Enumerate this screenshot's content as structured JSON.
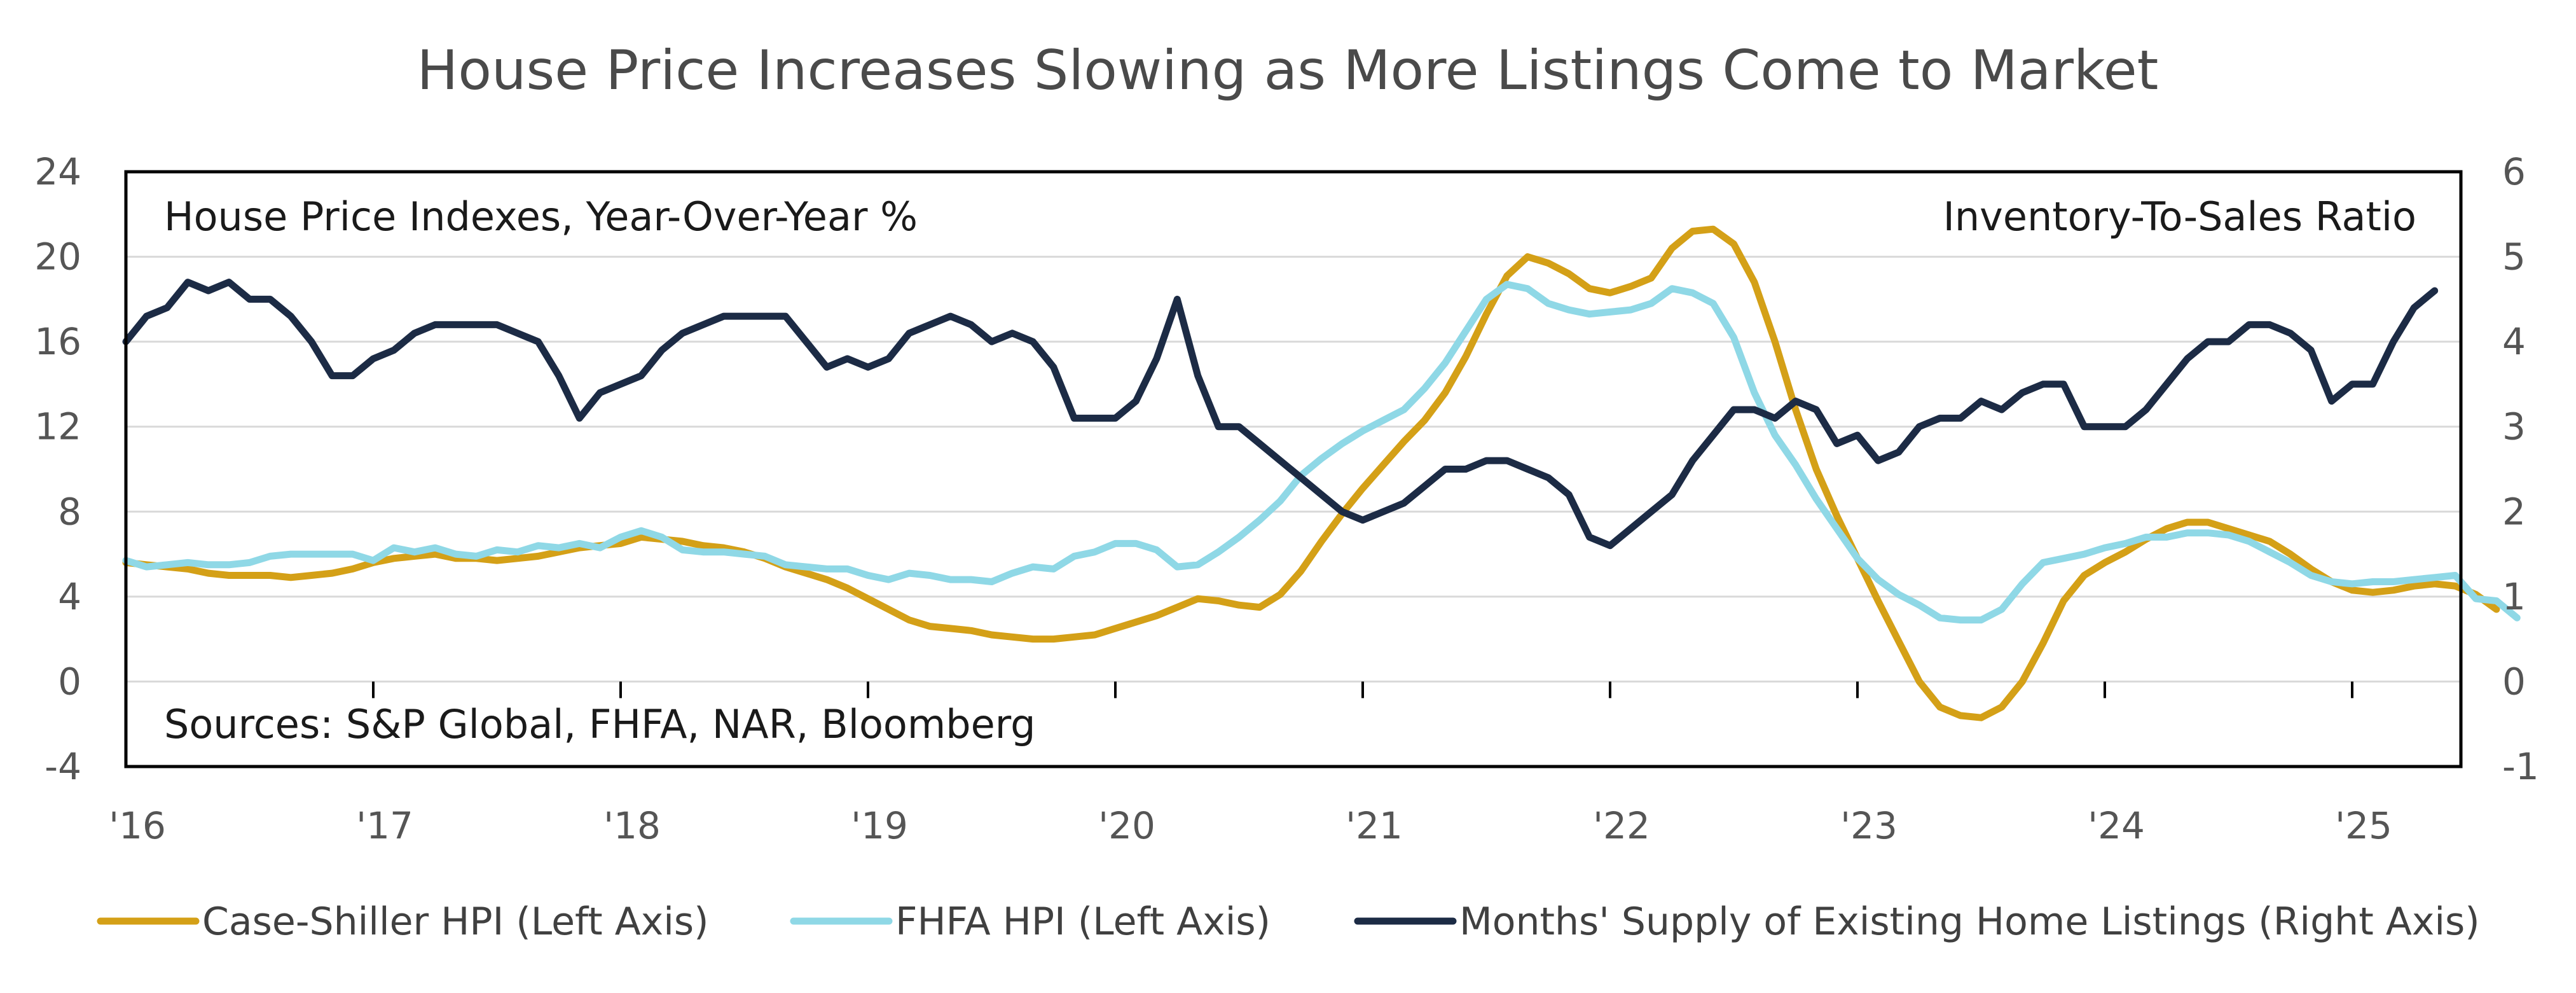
{
  "chart_data": {
    "type": "line",
    "title": "House Price Increases Slowing as More Listings Come to Market",
    "left_axis_label": "House Price Indexes, Year-Over-Year %",
    "right_axis_label": "Inventory-To-Sales Ratio",
    "source_note": "Sources: S&P Global, FHFA, NAR, Bloomberg",
    "x_start_year": 2016,
    "months_per_step": 1,
    "x_labels": [
      "'16",
      "'17",
      "'18",
      "'19",
      "'20",
      "'21",
      "'22",
      "'23",
      "'24",
      "'25"
    ],
    "ylim_left": [
      -4,
      24
    ],
    "yticks_left": [
      "24",
      "20",
      "16",
      "12",
      "8",
      "4",
      "0",
      "-4"
    ],
    "ylim_right": [
      -1,
      6
    ],
    "yticks_right": [
      "6",
      "5",
      "4",
      "3",
      "2",
      "1",
      "0",
      "-1"
    ],
    "legend_position": "bottom",
    "colors": {
      "case_shiller": "#D4A017",
      "fhfa": "#8FD8E6",
      "supply": "#1C2B45",
      "grid": "#D9D9D9",
      "frame": "#000000"
    },
    "series": [
      {
        "name": "Case-Shiller HPI (Left Axis)",
        "axis": "left",
        "color": "#D4A017",
        "values": [
          5.6,
          5.5,
          5.4,
          5.3,
          5.1,
          5.0,
          5.0,
          5.0,
          4.9,
          5.0,
          5.1,
          5.3,
          5.6,
          5.8,
          5.9,
          6.0,
          5.8,
          5.8,
          5.7,
          5.8,
          5.9,
          6.1,
          6.3,
          6.4,
          6.5,
          6.8,
          6.7,
          6.6,
          6.4,
          6.3,
          6.1,
          5.8,
          5.4,
          5.1,
          4.8,
          4.4,
          3.9,
          3.4,
          2.9,
          2.6,
          2.5,
          2.4,
          2.2,
          2.1,
          2.0,
          2.0,
          2.1,
          2.2,
          2.5,
          2.8,
          3.1,
          3.5,
          3.9,
          3.8,
          3.6,
          3.5,
          4.1,
          5.2,
          6.6,
          7.9,
          9.1,
          10.2,
          11.3,
          12.3,
          13.6,
          15.3,
          17.3,
          19.1,
          20.0,
          19.7,
          19.2,
          18.5,
          18.3,
          18.6,
          19.0,
          20.4,
          21.2,
          21.3,
          20.6,
          18.8,
          16.0,
          12.8,
          10.0,
          7.8,
          5.8,
          3.8,
          1.9,
          0.0,
          -1.2,
          -1.6,
          -1.7,
          -1.2,
          0.0,
          1.8,
          3.8,
          5.0,
          5.6,
          6.1,
          6.7,
          7.2,
          7.5,
          7.5,
          7.2,
          6.9,
          6.6,
          6.0,
          5.3,
          4.7,
          4.3,
          4.2,
          4.3,
          4.5,
          4.6,
          4.5,
          4.1,
          3.4
        ]
      },
      {
        "name": "FHFA HPI (Left Axis)",
        "axis": "left",
        "color": "#8FD8E6",
        "values": [
          5.7,
          5.4,
          5.5,
          5.6,
          5.5,
          5.5,
          5.6,
          5.9,
          6.0,
          6.0,
          6.0,
          6.0,
          5.7,
          6.3,
          6.1,
          6.3,
          6.0,
          5.9,
          6.2,
          6.1,
          6.4,
          6.3,
          6.5,
          6.3,
          6.8,
          7.1,
          6.8,
          6.2,
          6.1,
          6.1,
          6.0,
          5.9,
          5.5,
          5.4,
          5.3,
          5.3,
          5.0,
          4.8,
          5.1,
          5.0,
          4.8,
          4.8,
          4.7,
          5.1,
          5.4,
          5.3,
          5.9,
          6.1,
          6.5,
          6.5,
          6.2,
          5.4,
          5.5,
          6.1,
          6.8,
          7.6,
          8.5,
          9.7,
          10.5,
          11.2,
          11.8,
          12.3,
          12.8,
          13.8,
          15.0,
          16.5,
          18.0,
          18.7,
          18.5,
          17.8,
          17.5,
          17.3,
          17.4,
          17.5,
          17.8,
          18.5,
          18.3,
          17.8,
          16.2,
          13.6,
          11.6,
          10.2,
          8.6,
          7.2,
          5.8,
          4.8,
          4.1,
          3.6,
          3.0,
          2.9,
          2.9,
          3.4,
          4.6,
          5.6,
          5.8,
          6.0,
          6.3,
          6.5,
          6.8,
          6.8,
          7.0,
          7.0,
          6.9,
          6.6,
          6.1,
          5.6,
          5.0,
          4.7,
          4.6,
          4.7,
          4.7,
          4.8,
          4.9,
          5.0,
          3.9,
          3.8,
          3.0
        ]
      },
      {
        "name": "Months' Supply of Existing Home Listings (Right Axis)",
        "axis": "right",
        "color": "#1C2B45",
        "values": [
          4.0,
          4.3,
          4.4,
          4.7,
          4.6,
          4.7,
          4.5,
          4.5,
          4.3,
          4.0,
          3.6,
          3.6,
          3.8,
          3.9,
          4.1,
          4.2,
          4.2,
          4.2,
          4.2,
          4.1,
          4.0,
          3.6,
          3.1,
          3.4,
          3.5,
          3.6,
          3.9,
          4.1,
          4.2,
          4.3,
          4.3,
          4.3,
          4.3,
          4.0,
          3.7,
          3.8,
          3.7,
          3.8,
          4.1,
          4.2,
          4.3,
          4.2,
          4.0,
          4.1,
          4.0,
          3.7,
          3.1,
          3.1,
          3.1,
          3.3,
          3.8,
          4.5,
          3.6,
          3.0,
          3.0,
          2.8,
          2.6,
          2.4,
          2.2,
          2.0,
          1.9,
          2.0,
          2.1,
          2.3,
          2.5,
          2.5,
          2.6,
          2.6,
          2.5,
          2.4,
          2.2,
          1.7,
          1.6,
          1.8,
          2.0,
          2.2,
          2.6,
          2.9,
          3.2,
          3.2,
          3.1,
          3.3,
          3.2,
          2.8,
          2.9,
          2.6,
          2.7,
          3.0,
          3.1,
          3.1,
          3.3,
          3.2,
          3.4,
          3.5,
          3.5,
          3.0,
          3.0,
          3.0,
          3.2,
          3.5,
          3.8,
          4.0,
          4.0,
          4.2,
          4.2,
          4.1,
          3.9,
          3.3,
          3.5,
          3.5,
          4.0,
          4.4,
          4.6
        ]
      }
    ]
  }
}
